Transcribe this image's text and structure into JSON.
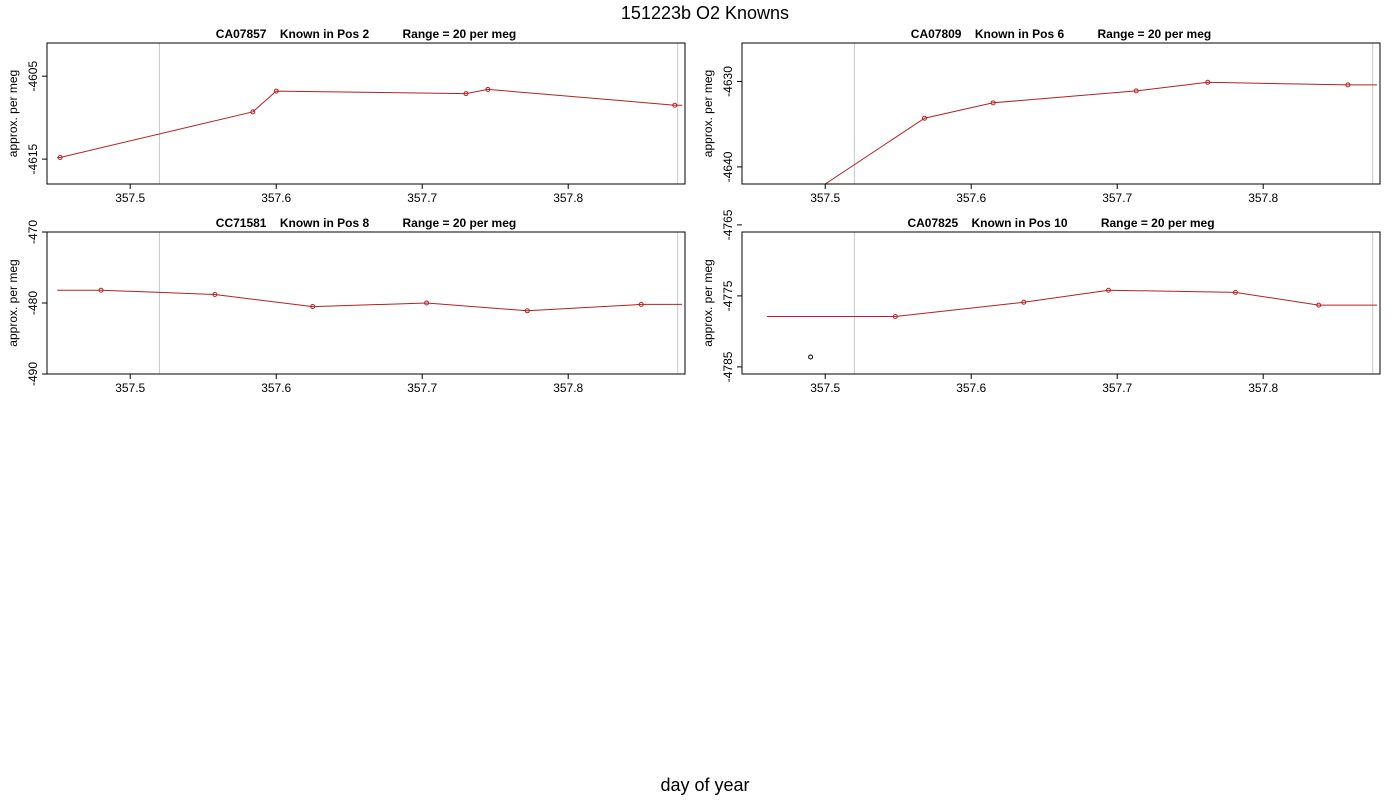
{
  "figure": {
    "title": "151223b   O2 Knowns",
    "x_axis_title": "day of year"
  },
  "colors": {
    "line": "#b22222",
    "reference_line": "#c8c8c8",
    "axis": "#000000",
    "outlier_point": "#000000"
  },
  "chart_data": [
    {
      "type": "line",
      "title": "CA07857    Known in Pos 2          Range = 20 per meg",
      "ylabel": "approx. per meg",
      "xlim": [
        357.443,
        357.88
      ],
      "ylim": [
        -4618,
        -4601
      ],
      "x_ticks": [
        "357.5",
        "357.6",
        "357.7",
        "357.8"
      ],
      "y_ticks": [
        "-4605",
        "-4615"
      ],
      "reference_lines_x": [
        357.52,
        357.875
      ],
      "grid": false,
      "series": [
        {
          "x": [
            357.45,
            357.452,
            357.584,
            357.6,
            357.73,
            357.745,
            357.873,
            357.878
          ],
          "y": [
            -4614.8,
            -4614.8,
            -4609.3,
            -4606.8,
            -4607.1,
            -4606.6,
            -4608.5,
            -4608.5
          ]
        }
      ],
      "markers": [
        {
          "x": [
            357.452,
            357.584,
            357.6,
            357.73,
            357.745,
            357.873
          ],
          "y": [
            -4614.8,
            -4609.3,
            -4606.8,
            -4607.1,
            -4606.6,
            -4608.5
          ]
        }
      ]
    },
    {
      "type": "line",
      "title": "CA07809    Known in Pos 6          Range = 20 per meg",
      "ylabel": "approx. per meg",
      "xlim": [
        357.443,
        357.88
      ],
      "ylim": [
        -4642,
        -4625.5
      ],
      "x_ticks": [
        "357.5",
        "357.6",
        "357.7",
        "357.8"
      ],
      "y_ticks": [
        "-4630",
        "-4640"
      ],
      "reference_lines_x": [
        357.52,
        357.875
      ],
      "grid": false,
      "series": [
        {
          "x": [
            357.5,
            357.568,
            357.615,
            357.713,
            357.762,
            357.858,
            357.878
          ],
          "y": [
            -4642,
            -4634.3,
            -4632.5,
            -4631.1,
            -4630.1,
            -4630.4,
            -4630.4
          ]
        }
      ],
      "markers": [
        {
          "x": [
            357.568,
            357.615,
            357.713,
            357.762,
            357.858
          ],
          "y": [
            -4634.3,
            -4632.5,
            -4631.1,
            -4630.1,
            -4630.4
          ]
        }
      ]
    },
    {
      "type": "line",
      "title": "CC71581    Known in Pos 8          Range = 20 per meg",
      "ylabel": "approx. per meg",
      "xlim": [
        357.443,
        357.88
      ],
      "ylim": [
        -490,
        -470
      ],
      "x_ticks": [
        "357.5",
        "357.6",
        "357.7",
        "357.8"
      ],
      "y_ticks": [
        "-470",
        "-480",
        "-490"
      ],
      "reference_lines_x": [
        357.52,
        357.875
      ],
      "grid": false,
      "series": [
        {
          "x": [
            357.45,
            357.48,
            357.558,
            357.625,
            357.703,
            357.772,
            357.85,
            357.878
          ],
          "y": [
            -478.2,
            -478.2,
            -478.8,
            -480.5,
            -480.0,
            -481.1,
            -480.2,
            -480.2
          ]
        }
      ],
      "markers": [
        {
          "x": [
            357.48,
            357.558,
            357.625,
            357.703,
            357.772,
            357.85
          ],
          "y": [
            -478.2,
            -478.8,
            -480.5,
            -480.0,
            -481.1,
            -480.2
          ]
        }
      ]
    },
    {
      "type": "line",
      "title": "CA07825    Known in Pos 10          Range = 20 per meg",
      "ylabel": "approx. per meg",
      "xlim": [
        357.443,
        357.88
      ],
      "ylim": [
        -4786,
        -4766
      ],
      "x_ticks": [
        "357.5",
        "357.6",
        "357.7",
        "357.8"
      ],
      "y_ticks": [
        "-4765",
        "-4775",
        "-4785"
      ],
      "reference_lines_x": [
        357.52,
        357.875
      ],
      "grid": false,
      "series": [
        {
          "x": [
            357.46,
            357.548,
            357.636,
            357.694,
            357.781,
            357.838,
            357.878
          ],
          "y": [
            -4777.9,
            -4777.9,
            -4775.9,
            -4774.2,
            -4774.5,
            -4776.3,
            -4776.3
          ]
        }
      ],
      "markers": [
        {
          "x": [
            357.548,
            357.636,
            357.694,
            357.781,
            357.838
          ],
          "y": [
            -4777.9,
            -4775.9,
            -4774.2,
            -4774.5,
            -4776.3
          ]
        }
      ],
      "outlier_points": {
        "x": [
          357.49
        ],
        "y": [
          -4783.6
        ]
      }
    }
  ]
}
